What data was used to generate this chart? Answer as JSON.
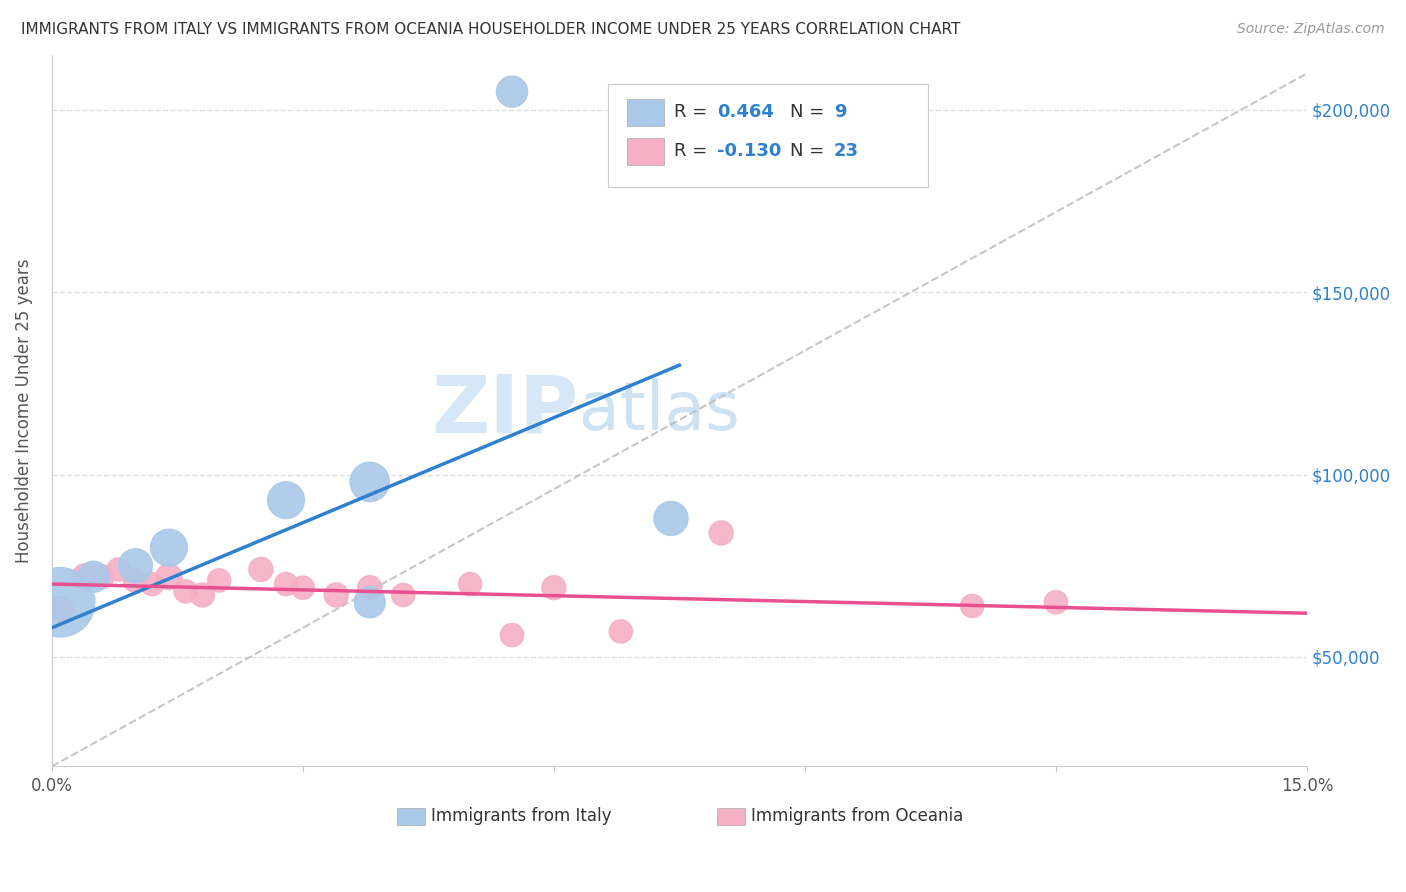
{
  "title": "IMMIGRANTS FROM ITALY VS IMMIGRANTS FROM OCEANIA HOUSEHOLDER INCOME UNDER 25 YEARS CORRELATION CHART",
  "source": "Source: ZipAtlas.com",
  "ylabel": "Householder Income Under 25 years",
  "xlim": [
    0,
    0.15
  ],
  "ylim": [
    20000,
    215000
  ],
  "xticks": [
    0.0,
    0.03,
    0.06,
    0.09,
    0.12,
    0.15
  ],
  "xtick_labels": [
    "0.0%",
    "",
    "",
    "",
    "",
    "15.0%"
  ],
  "ytick_values": [
    50000,
    100000,
    150000,
    200000
  ],
  "italy_R": 0.464,
  "italy_N": 9,
  "oceania_R": -0.13,
  "oceania_N": 23,
  "italy_color": "#aac8e8",
  "italy_line_color": "#3080d0",
  "oceania_color": "#f5afc5",
  "oceania_line_color": "#e85090",
  "ref_line_color": "#b8b8b8",
  "italy_x": [
    0.001,
    0.005,
    0.01,
    0.014,
    0.028,
    0.038,
    0.055,
    0.074,
    0.038
  ],
  "italy_y": [
    65000,
    72000,
    75000,
    80000,
    93000,
    98000,
    205000,
    88000,
    65000
  ],
  "italy_size": [
    2500,
    500,
    600,
    700,
    700,
    800,
    500,
    600,
    500
  ],
  "italy_line_x0": 0.0,
  "italy_line_y0": 58000,
  "italy_line_x1": 0.075,
  "italy_line_y1": 130000,
  "oceania_x": [
    0.001,
    0.004,
    0.006,
    0.008,
    0.01,
    0.012,
    0.014,
    0.016,
    0.018,
    0.02,
    0.025,
    0.028,
    0.03,
    0.034,
    0.038,
    0.042,
    0.05,
    0.055,
    0.06,
    0.068,
    0.08,
    0.11,
    0.12
  ],
  "oceania_y": [
    63000,
    72000,
    72000,
    74000,
    71000,
    70000,
    72000,
    68000,
    67000,
    71000,
    74000,
    70000,
    69000,
    67000,
    69000,
    67000,
    70000,
    56000,
    69000,
    57000,
    84000,
    64000,
    65000
  ],
  "oceania_size": [
    350,
    350,
    300,
    280,
    300,
    280,
    350,
    280,
    300,
    280,
    300,
    280,
    280,
    300,
    300,
    280,
    280,
    280,
    300,
    280,
    300,
    280,
    280
  ],
  "oceania_line_x0": 0.0,
  "oceania_line_y0": 70000,
  "oceania_line_x1": 0.15,
  "oceania_line_y1": 62000,
  "ref_line_x0": 0.0,
  "ref_line_y0": 20000,
  "ref_line_x1": 0.15,
  "ref_line_y1": 210000,
  "background_color": "#ffffff",
  "watermark_zip": "ZIP",
  "watermark_atlas": "atlas",
  "grid_color": "#e0e0e0",
  "axis_color": "#cccccc",
  "label_color": "#555555",
  "right_tick_color": "#3080d0",
  "title_fontsize": 11,
  "source_fontsize": 10,
  "ylabel_fontsize": 12,
  "tick_fontsize": 12,
  "legend_fontsize": 13
}
